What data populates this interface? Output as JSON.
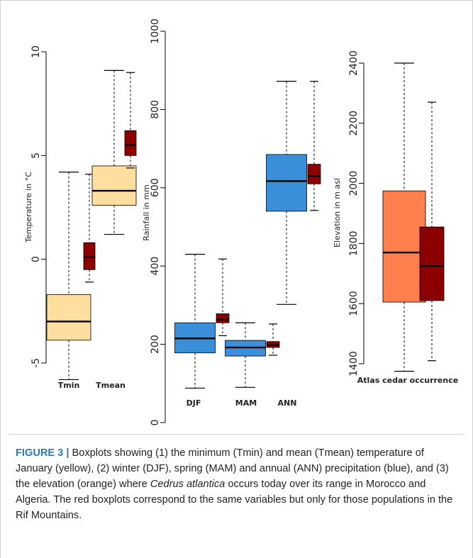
{
  "chart_data": [
    {
      "type": "box",
      "panel": "temperature",
      "ylabel": "Temperature in °C",
      "ylim": [
        -5,
        10
      ],
      "yticks": [
        -5,
        0,
        5,
        10
      ],
      "categories": [
        "Tmin",
        "Tmean"
      ],
      "boxes": [
        {
          "category": "Tmin",
          "group": "range",
          "color": "#FFDEA0",
          "whisker_low": -5.8,
          "q1": -3.9,
          "median": -3.0,
          "q3": -1.7,
          "whisker_high": 4.2
        },
        {
          "category": "Tmin",
          "group": "rif",
          "color": "#8B0000",
          "whisker_low": -1.1,
          "q1": -0.5,
          "median": 0.1,
          "q3": 0.8,
          "whisker_high": 4.1
        },
        {
          "category": "Tmean",
          "group": "range",
          "color": "#FFDEA0",
          "whisker_low": 1.2,
          "q1": 2.6,
          "median": 3.3,
          "q3": 4.5,
          "whisker_high": 9.1
        },
        {
          "category": "Tmean",
          "group": "rif",
          "color": "#8B0000",
          "whisker_low": 4.4,
          "q1": 5.0,
          "median": 5.5,
          "q3": 6.2,
          "whisker_high": 9.0
        }
      ]
    },
    {
      "type": "box",
      "panel": "rainfall",
      "ylabel": "Rainfall in mm",
      "ylim": [
        0,
        1000
      ],
      "yticks": [
        0,
        200,
        400,
        600,
        800,
        1000
      ],
      "categories": [
        "DJF",
        "MAM",
        "ANN"
      ],
      "boxes": [
        {
          "category": "DJF",
          "group": "range",
          "color": "#3A8FD8",
          "whisker_low": 88,
          "q1": 178,
          "median": 215,
          "q3": 255,
          "whisker_high": 430
        },
        {
          "category": "DJF",
          "group": "rif",
          "color": "#8B0000",
          "whisker_low": 222,
          "q1": 255,
          "median": 263,
          "q3": 278,
          "whisker_high": 418
        },
        {
          "category": "MAM",
          "group": "range",
          "color": "#3A8FD8",
          "whisker_low": 90,
          "q1": 170,
          "median": 192,
          "q3": 210,
          "whisker_high": 255
        },
        {
          "category": "MAM",
          "group": "rif",
          "color": "#8B0000",
          "whisker_low": 172,
          "q1": 192,
          "median": 198,
          "q3": 207,
          "whisker_high": 252
        },
        {
          "category": "ANN",
          "group": "range",
          "color": "#3A8FD8",
          "whisker_low": 302,
          "q1": 540,
          "median": 617,
          "q3": 685,
          "whisker_high": 872
        },
        {
          "category": "ANN",
          "group": "rif",
          "color": "#8B0000",
          "whisker_low": 542,
          "q1": 610,
          "median": 630,
          "q3": 660,
          "whisker_high": 872
        }
      ]
    },
    {
      "type": "box",
      "panel": "elevation",
      "ylabel": "Elevation in m asl",
      "xlabel": "Atlas cedar occurrence",
      "ylim": [
        1400,
        2400
      ],
      "yticks": [
        1400,
        1600,
        1800,
        2000,
        2200,
        2400
      ],
      "boxes": [
        {
          "group": "range",
          "color": "#FF7F4D",
          "whisker_low": 1375,
          "q1": 1605,
          "median": 1770,
          "q3": 1975,
          "whisker_high": 2400
        },
        {
          "group": "rif",
          "color": "#8B0000",
          "whisker_low": 1410,
          "q1": 1610,
          "median": 1725,
          "q3": 1855,
          "whisker_high": 2270
        }
      ]
    }
  ],
  "caption": {
    "label": "FIGURE 3",
    "separator": "|",
    "text_before_italic": " Boxplots showing (1) the minimum (Tmin) and mean (Tmean) temperature of January (yellow), (2) winter (DJF), spring (MAM) and annual (ANN) precipitation (blue), and (3) the elevation (orange) where ",
    "italic": "Cedrus atlantica",
    "text_after_italic": " occurs today over its range in Morocco and Algeria. The red boxplots correspond to the same variables but only for those populations in the Rif Mountains."
  }
}
